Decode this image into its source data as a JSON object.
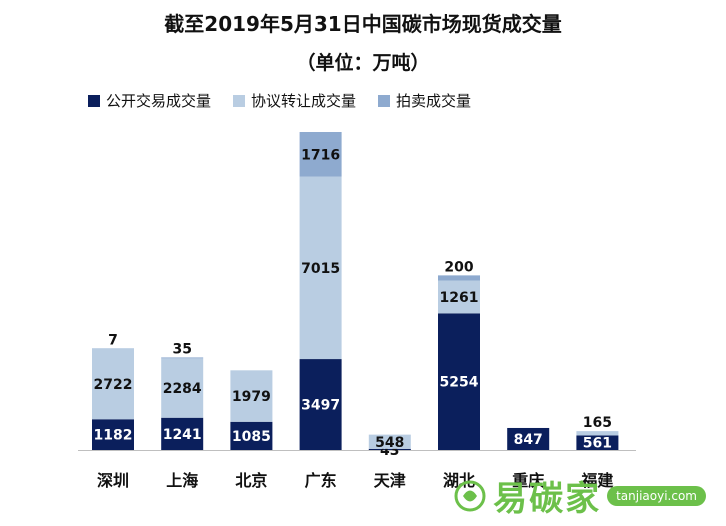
{
  "header": {
    "title": "截至2019年5月31日中国碳市场现货成交量",
    "subtitle": "（单位：万吨）"
  },
  "legend": [
    {
      "label": "公开交易成交量",
      "color": "#0b1f5c"
    },
    {
      "label": "协议转让成交量",
      "color": "#b9cde2"
    },
    {
      "label": "拍卖成交量",
      "color": "#8eaacf"
    }
  ],
  "watermark": {
    "brand": "易碳家",
    "domain": "tanjiaoyi.com",
    "icon": "carbon-logo-icon"
  },
  "chart_data": {
    "type": "bar",
    "stacked": true,
    "title": "截至2019年5月31日中国碳市场现货成交量",
    "subtitle": "（单位：万吨）",
    "categories": [
      "深圳",
      "上海",
      "北京",
      "广东",
      "天津",
      "湖北",
      "重庆",
      "福建"
    ],
    "series": [
      {
        "name": "公开交易成交量",
        "color": "#0b1f5c",
        "values": [
          1182,
          1241,
          1085,
          3497,
          43,
          5254,
          847,
          561
        ]
      },
      {
        "name": "协议转让成交量",
        "color": "#b9cde2",
        "values": [
          2722,
          2284,
          1979,
          7015,
          548,
          1261,
          0,
          165
        ]
      },
      {
        "name": "拍卖成交量",
        "color": "#8eaacf",
        "values": [
          7,
          35,
          0,
          1716,
          0,
          200,
          0,
          0
        ]
      }
    ],
    "data_labels": [
      [
        "1182",
        "1241",
        "1085",
        "3497",
        "43",
        "5254",
        "847",
        "561"
      ],
      [
        "2722",
        "2284",
        "1979",
        "7015",
        "548",
        "1261",
        "",
        "165"
      ],
      [
        "7",
        "35",
        "",
        "1716",
        "",
        "200",
        "",
        ""
      ]
    ],
    "ylim": [
      0,
      12228
    ],
    "legend_position": "top",
    "grid": false
  }
}
